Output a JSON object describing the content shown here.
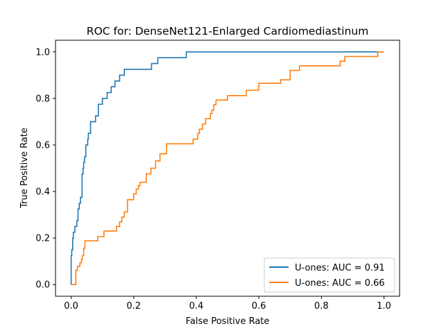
{
  "chart_data": {
    "type": "line",
    "title": "ROC for: DenseNet121-Enlarged Cardiomediastinum",
    "xlabel": "False Positive Rate",
    "ylabel": "True Positive Rate",
    "xlim": [
      -0.05,
      1.05
    ],
    "ylim": [
      -0.05,
      1.05
    ],
    "x_ticks": [
      "0.0",
      "0.2",
      "0.4",
      "0.6",
      "0.8",
      "1.0"
    ],
    "y_ticks": [
      "0.0",
      "0.2",
      "0.4",
      "0.6",
      "0.8",
      "1.0"
    ],
    "grid": false,
    "legend_position": "lower right",
    "series": [
      {
        "name": "U-ones: AUC = 0.91",
        "color": "#1f77b4",
        "x": [
          0.0,
          0.0,
          0.002,
          0.002,
          0.005,
          0.005,
          0.007,
          0.007,
          0.012,
          0.012,
          0.018,
          0.018,
          0.022,
          0.022,
          0.026,
          0.026,
          0.03,
          0.03,
          0.035,
          0.035,
          0.038,
          0.038,
          0.04,
          0.04,
          0.043,
          0.043,
          0.047,
          0.047,
          0.05,
          0.05,
          0.053,
          0.053,
          0.055,
          0.055,
          0.062,
          0.062,
          0.07,
          0.07,
          0.078,
          0.078,
          0.087,
          0.087,
          0.1,
          0.1,
          0.115,
          0.115,
          0.12,
          0.12,
          0.128,
          0.128,
          0.14,
          0.14,
          0.155,
          0.155,
          0.16,
          0.16,
          0.165,
          0.165,
          0.17,
          0.17,
          0.257,
          0.257,
          0.277,
          0.277,
          0.368,
          0.368,
          0.53,
          0.53,
          1.0
        ],
        "y": [
          0.0,
          0.125,
          0.125,
          0.15,
          0.15,
          0.2,
          0.2,
          0.225,
          0.225,
          0.25,
          0.25,
          0.275,
          0.275,
          0.325,
          0.325,
          0.35,
          0.35,
          0.375,
          0.375,
          0.475,
          0.475,
          0.5,
          0.5,
          0.525,
          0.525,
          0.55,
          0.55,
          0.6,
          0.6,
          0.6,
          0.6,
          0.625,
          0.625,
          0.65,
          0.65,
          0.7,
          0.7,
          0.7,
          0.7,
          0.725,
          0.725,
          0.775,
          0.775,
          0.8,
          0.8,
          0.825,
          0.825,
          0.825,
          0.825,
          0.85,
          0.85,
          0.875,
          0.875,
          0.9,
          0.9,
          0.9,
          0.9,
          0.9,
          0.9,
          0.925,
          0.925,
          0.95,
          0.95,
          0.975,
          0.975,
          1.0,
          1.0,
          1.0,
          1.0
        ]
      },
      {
        "name": "U-ones: AUC = 0.66",
        "color": "#ff7f0e",
        "x": [
          0.0,
          0.0,
          0.015,
          0.015,
          0.02,
          0.02,
          0.028,
          0.028,
          0.033,
          0.033,
          0.036,
          0.036,
          0.04,
          0.04,
          0.044,
          0.044,
          0.085,
          0.085,
          0.105,
          0.105,
          0.145,
          0.145,
          0.155,
          0.155,
          0.162,
          0.162,
          0.17,
          0.17,
          0.18,
          0.18,
          0.2,
          0.2,
          0.208,
          0.208,
          0.215,
          0.215,
          0.22,
          0.22,
          0.24,
          0.24,
          0.255,
          0.255,
          0.27,
          0.27,
          0.284,
          0.284,
          0.305,
          0.305,
          0.39,
          0.39,
          0.405,
          0.405,
          0.41,
          0.41,
          0.42,
          0.42,
          0.43,
          0.43,
          0.445,
          0.445,
          0.45,
          0.45,
          0.456,
          0.456,
          0.463,
          0.463,
          0.5,
          0.5,
          0.56,
          0.56,
          0.6,
          0.6,
          0.67,
          0.67,
          0.7,
          0.7,
          0.73,
          0.73,
          0.86,
          0.86,
          0.875,
          0.875,
          0.98,
          0.98,
          1.0
        ],
        "y": [
          0.0,
          0.0,
          0.0,
          0.062,
          0.062,
          0.078,
          0.078,
          0.094,
          0.094,
          0.109,
          0.109,
          0.125,
          0.125,
          0.156,
          0.156,
          0.188,
          0.188,
          0.206,
          0.206,
          0.23,
          0.23,
          0.25,
          0.25,
          0.27,
          0.27,
          0.29,
          0.29,
          0.312,
          0.312,
          0.365,
          0.365,
          0.39,
          0.39,
          0.41,
          0.41,
          0.425,
          0.425,
          0.44,
          0.44,
          0.476,
          0.476,
          0.5,
          0.5,
          0.531,
          0.531,
          0.562,
          0.562,
          0.605,
          0.605,
          0.625,
          0.625,
          0.65,
          0.65,
          0.668,
          0.668,
          0.69,
          0.69,
          0.713,
          0.713,
          0.735,
          0.735,
          0.75,
          0.75,
          0.773,
          0.773,
          0.793,
          0.793,
          0.812,
          0.812,
          0.835,
          0.835,
          0.865,
          0.865,
          0.88,
          0.88,
          0.92,
          0.92,
          0.94,
          0.94,
          0.96,
          0.96,
          0.98,
          0.98,
          1.0,
          1.0
        ]
      }
    ]
  }
}
